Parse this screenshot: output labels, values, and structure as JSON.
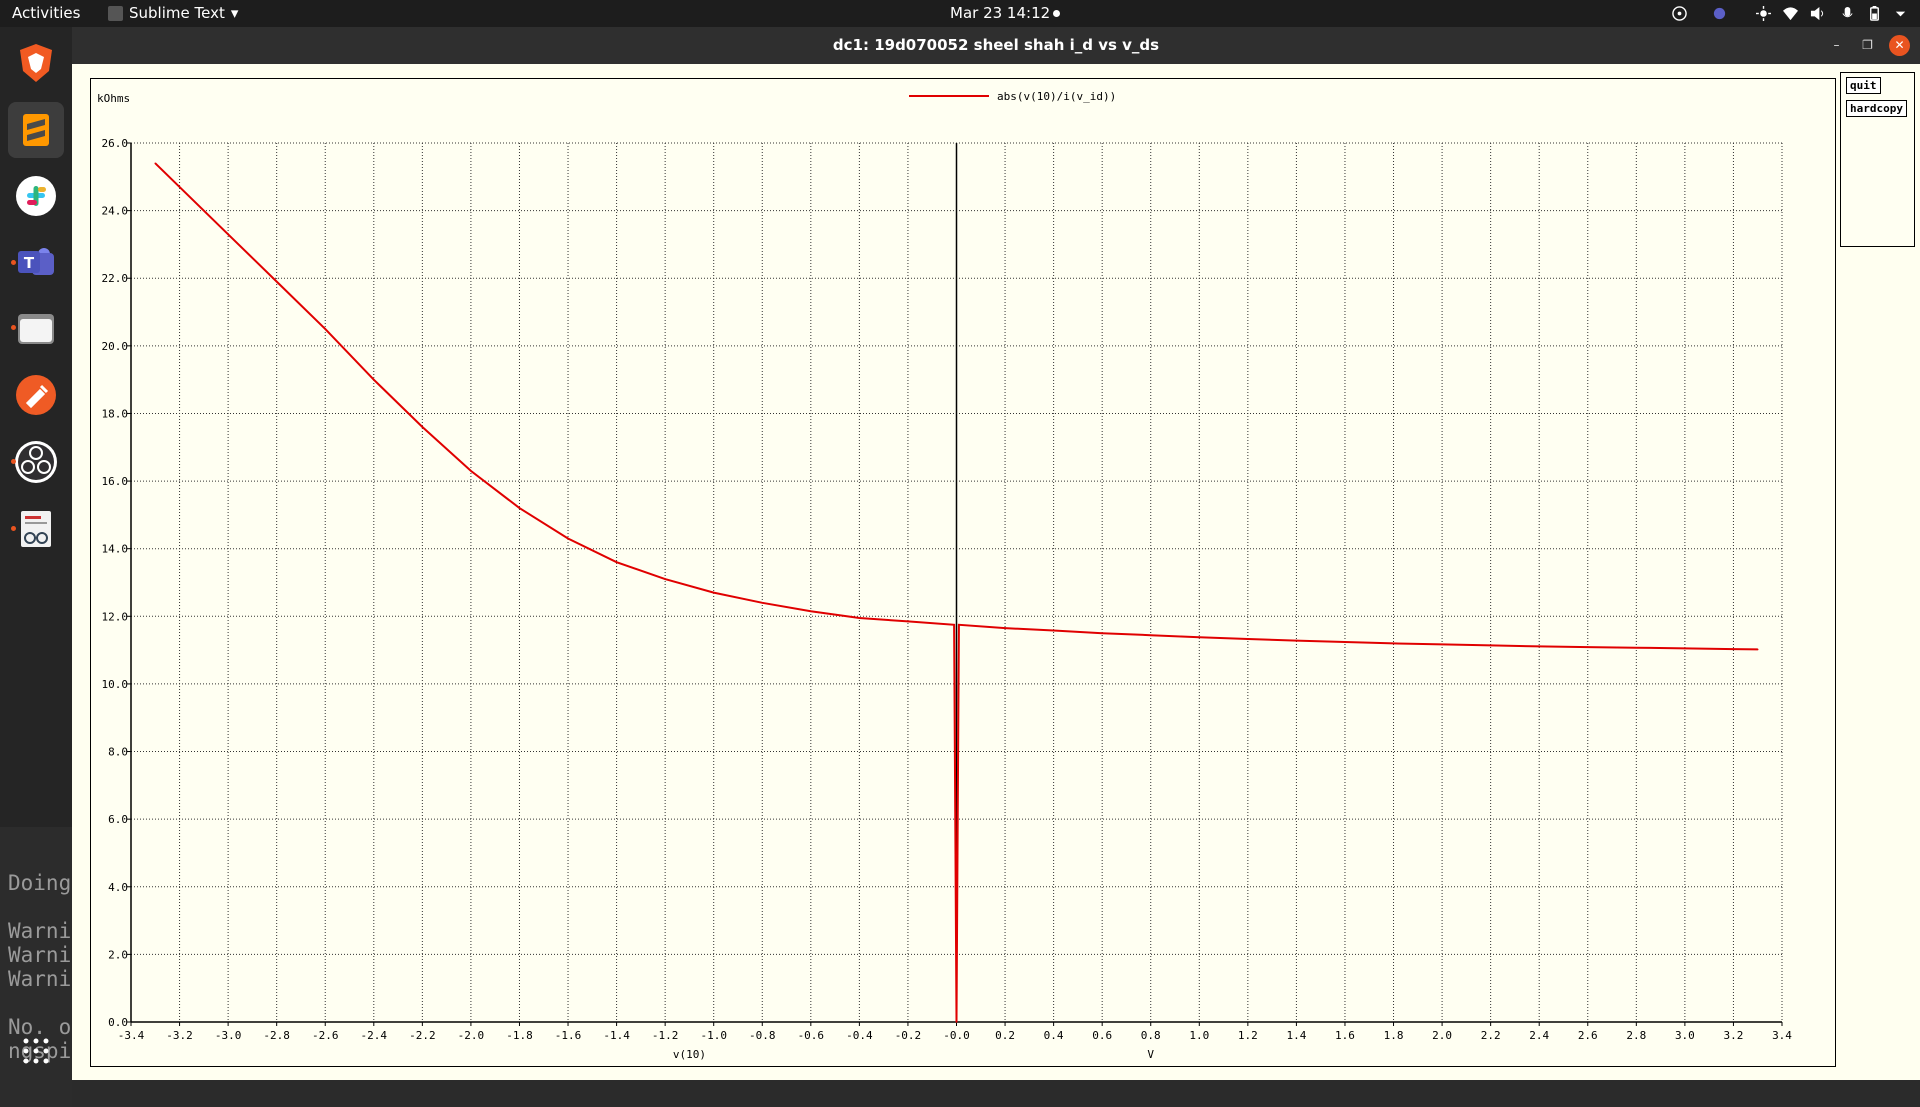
{
  "topbar": {
    "activities": "Activities",
    "app_name": "Sublime Text",
    "clock": "Mar 23  14:12"
  },
  "dock": {
    "items": [
      "brave-browser",
      "sublime-text",
      "slack",
      "teams",
      "files",
      "postman",
      "obs-studio",
      "document-viewer"
    ],
    "terminal_lines": [
      "Doing",
      "Warni",
      "Warni",
      "Warni",
      "No. o",
      "ngspi"
    ],
    "apps_grid": "show-applications"
  },
  "window": {
    "title": "dc1: 19d070052 sheel shah i_d vs v_ds",
    "side_buttons": {
      "quit": "quit",
      "hardcopy": "hardcopy"
    }
  },
  "chart_data": {
    "type": "line",
    "ylabel": "kOhms",
    "xlabel": "v(10)",
    "xunit": "V",
    "legend": "abs(v(10)/i(v_id))",
    "legend_placement": "top-center",
    "grid": true,
    "xlim": [
      -3.4,
      3.4
    ],
    "ylim": [
      0,
      26
    ],
    "xticks": [
      "-3.4",
      "-3.2",
      "-3.0",
      "-2.8",
      "-2.6",
      "-2.4",
      "-2.2",
      "-2.0",
      "-1.8",
      "-1.6",
      "-1.4",
      "-1.2",
      "-1.0",
      "-0.8",
      "-0.6",
      "-0.4",
      "-0.2",
      "-0.0",
      "0.2",
      "0.4",
      "0.6",
      "0.8",
      "1.0",
      "1.2",
      "1.4",
      "1.6",
      "1.8",
      "2.0",
      "2.2",
      "2.4",
      "2.6",
      "2.8",
      "3.0",
      "3.2",
      "3.4"
    ],
    "yticks": [
      "0.0",
      "2.0",
      "4.0",
      "6.0",
      "8.0",
      "10.0",
      "12.0",
      "14.0",
      "16.0",
      "18.0",
      "20.0",
      "22.0",
      "24.0",
      "26.0"
    ],
    "series": [
      {
        "name": "abs(v(10)/i(v_id))",
        "color": "#e00000",
        "points": [
          [
            -3.3,
            25.4
          ],
          [
            -3.0,
            23.3
          ],
          [
            -2.8,
            21.9
          ],
          [
            -2.6,
            20.5
          ],
          [
            -2.4,
            19.0
          ],
          [
            -2.2,
            17.6
          ],
          [
            -2.0,
            16.3
          ],
          [
            -1.8,
            15.2
          ],
          [
            -1.6,
            14.3
          ],
          [
            -1.4,
            13.6
          ],
          [
            -1.2,
            13.1
          ],
          [
            -1.0,
            12.7
          ],
          [
            -0.8,
            12.4
          ],
          [
            -0.6,
            12.15
          ],
          [
            -0.4,
            11.95
          ],
          [
            -0.2,
            11.85
          ],
          [
            -0.01,
            11.75
          ],
          [
            0.0,
            0.0
          ],
          [
            0.005,
            6.0
          ],
          [
            0.01,
            11.75
          ],
          [
            0.2,
            11.65
          ],
          [
            0.4,
            11.58
          ],
          [
            0.6,
            11.5
          ],
          [
            0.8,
            11.44
          ],
          [
            1.0,
            11.38
          ],
          [
            1.2,
            11.33
          ],
          [
            1.4,
            11.28
          ],
          [
            1.6,
            11.24
          ],
          [
            1.8,
            11.2
          ],
          [
            2.0,
            11.17
          ],
          [
            2.2,
            11.14
          ],
          [
            2.4,
            11.11
          ],
          [
            2.6,
            11.09
          ],
          [
            2.8,
            11.07
          ],
          [
            3.0,
            11.05
          ],
          [
            3.2,
            11.03
          ],
          [
            3.3,
            11.02
          ]
        ]
      }
    ],
    "zero_line_color": "#000000"
  }
}
